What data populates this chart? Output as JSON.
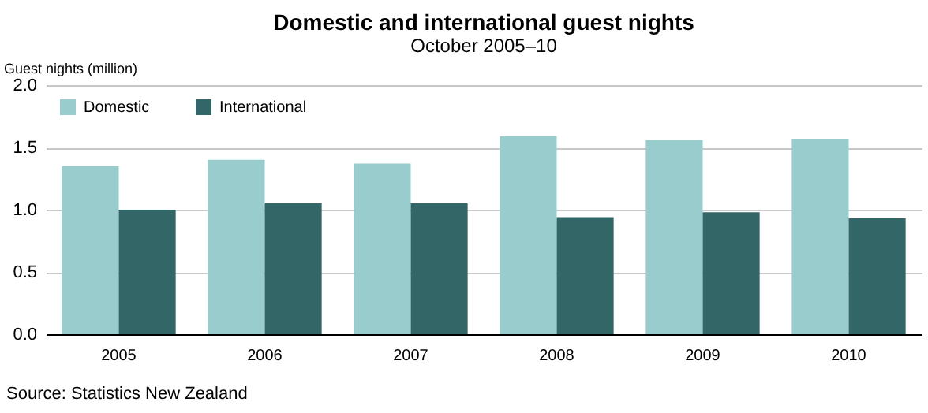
{
  "chart_data": {
    "type": "bar",
    "title": "Domestic and international guest nights",
    "subtitle": "October 2005–10",
    "ylabel": "Guest nights (million)",
    "categories": [
      "2005",
      "2006",
      "2007",
      "2008",
      "2009",
      "2010"
    ],
    "series": [
      {
        "name": "Domestic",
        "color": "#99cccc",
        "values": [
          1.35,
          1.4,
          1.37,
          1.59,
          1.56,
          1.57
        ]
      },
      {
        "name": "International",
        "color": "#336666",
        "values": [
          1.0,
          1.05,
          1.05,
          0.94,
          0.98,
          0.93
        ]
      }
    ],
    "ylim": [
      0,
      2
    ],
    "yticks": [
      {
        "value": 0,
        "label": "0.0"
      },
      {
        "value": 0.5,
        "label": "0.5"
      },
      {
        "value": 1,
        "label": "1.0"
      },
      {
        "value": 1.5,
        "label": "1.5"
      },
      {
        "value": 2,
        "label": "2.0"
      }
    ],
    "grid": "y",
    "legend": "top left",
    "annotations": [
      "Source: Statistics New Zealand"
    ]
  }
}
